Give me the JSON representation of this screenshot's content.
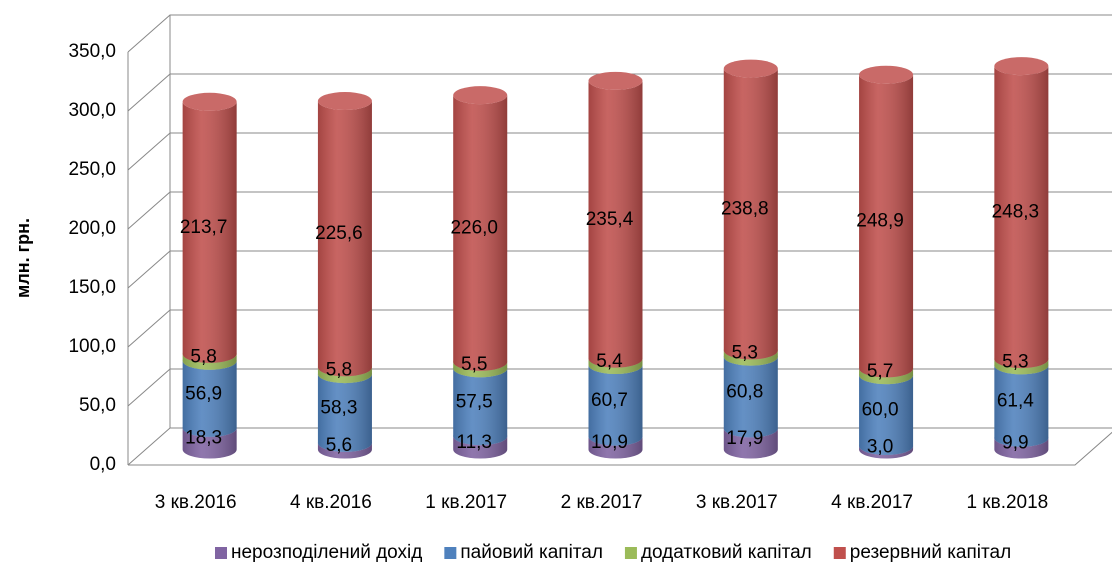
{
  "chart_data": {
    "type": "bar3d_stacked_cylinder",
    "y_label": "млн. грн.",
    "categories": [
      "3 кв.2016",
      "4 кв.2016",
      "1 кв.2017",
      "2 кв.2017",
      "3 кв.2017",
      "4 кв.2017",
      "1 кв.2018"
    ],
    "series": [
      {
        "name": "нерозподілений дохід",
        "color": "#8064a2",
        "values": [
          18.3,
          5.6,
          11.3,
          10.9,
          17.9,
          3.0,
          9.9
        ],
        "value_labels": [
          "18,3",
          "5,6",
          "11,3",
          "10,9",
          "17,9",
          "3,0",
          "9,9"
        ]
      },
      {
        "name": "пайовий капітал",
        "color": "#4f81bd",
        "values": [
          56.9,
          58.3,
          57.5,
          60.7,
          60.8,
          60.0,
          61.4
        ],
        "value_labels": [
          "56,9",
          "58,3",
          "57,5",
          "60,7",
          "60,8",
          "60,0",
          "61,4"
        ]
      },
      {
        "name": "додатковий капітал",
        "color": "#9bbb59",
        "values": [
          5.8,
          5.8,
          5.5,
          5.4,
          5.3,
          5.7,
          5.3
        ],
        "value_labels": [
          "5,8",
          "5,8",
          "5,5",
          "5,4",
          "5,3",
          "5,7",
          "5,3"
        ]
      },
      {
        "name": "резервний капітал",
        "color": "#c0504d",
        "values": [
          213.7,
          225.6,
          226.0,
          235.4,
          238.8,
          248.9,
          248.3
        ],
        "value_labels": [
          "213,7",
          "225,6",
          "226,0",
          "235,4",
          "238,8",
          "248,9",
          "248,3"
        ]
      }
    ],
    "ylim": [
      0,
      350
    ],
    "yticks": [
      {
        "value": 0,
        "label": "0,0"
      },
      {
        "value": 50,
        "label": "50,0"
      },
      {
        "value": 100,
        "label": "100,0"
      },
      {
        "value": 150,
        "label": "150,0"
      },
      {
        "value": 200,
        "label": "200,0"
      },
      {
        "value": 250,
        "label": "250,0"
      },
      {
        "value": 300,
        "label": "300,0"
      },
      {
        "value": 350,
        "label": "350,0"
      }
    ],
    "stacked": true,
    "grid": true,
    "legend": "bottom"
  }
}
